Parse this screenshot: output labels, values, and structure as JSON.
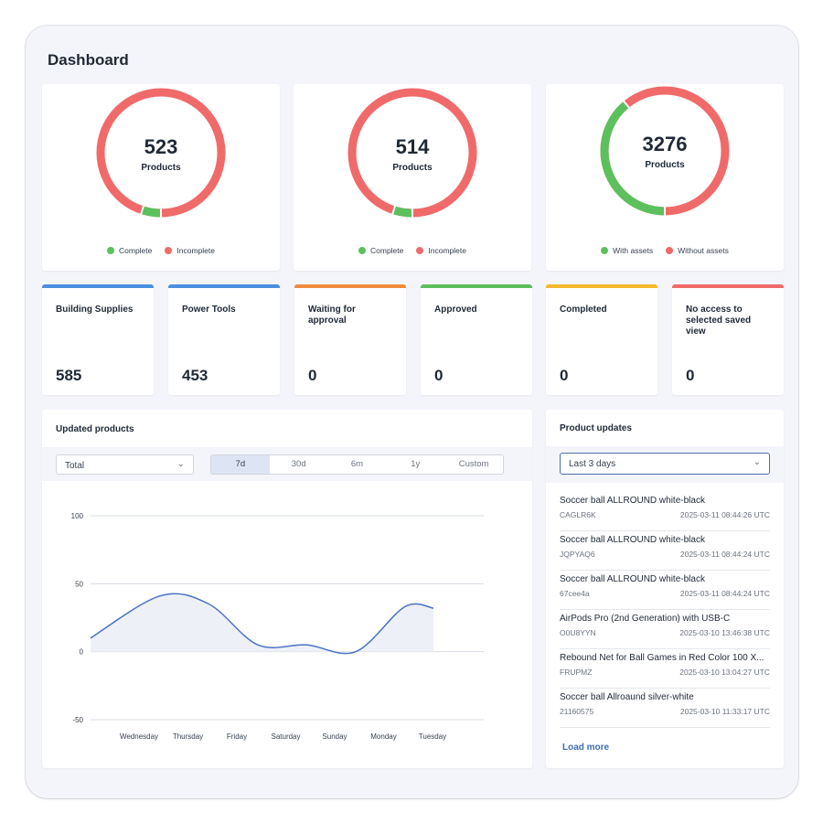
{
  "page": {
    "title": "Dashboard"
  },
  "colors": {
    "green": "#5cc05c",
    "red": "#f06a6a",
    "blue": "#4a90e2",
    "orange": "#f08a3c",
    "yellow": "#f5b82e",
    "line": "#4a72c4"
  },
  "donuts": [
    {
      "value": "523",
      "label": "Products",
      "green_fraction": 0.05,
      "legend": [
        "Complete",
        "Incomplete"
      ]
    },
    {
      "value": "514",
      "label": "Products",
      "green_fraction": 0.05,
      "legend": [
        "Complete",
        "Incomplete"
      ]
    },
    {
      "value": "3276",
      "label": "Products",
      "green_fraction": 0.39,
      "legend": [
        "With assets",
        "Without assets"
      ]
    }
  ],
  "stats": [
    {
      "name": "Building Supplies",
      "value": "585",
      "color": "#4a90e2"
    },
    {
      "name": "Power Tools",
      "value": "453",
      "color": "#4a90e2"
    },
    {
      "name": "Waiting for approval",
      "value": "0",
      "color": "#f08a3c"
    },
    {
      "name": "Approved",
      "value": "0",
      "color": "#5cc05c"
    },
    {
      "name": "Completed",
      "value": "0",
      "color": "#f5b82e"
    },
    {
      "name": "No access to selected saved view",
      "value": "0",
      "color": "#f06a6a"
    }
  ],
  "updated_products": {
    "title": "Updated products",
    "filter": "Total",
    "ranges": [
      "7d",
      "30d",
      "6m",
      "1y",
      "Custom"
    ],
    "active_range": "7d"
  },
  "chart_data": {
    "type": "area",
    "categories": [
      "Wednesday",
      "Thursday",
      "Friday",
      "Saturday",
      "Sunday",
      "Monday",
      "Tuesday"
    ],
    "values": [
      41,
      35,
      5,
      5,
      0,
      33,
      32
    ],
    "start_value": 10,
    "yticks": [
      100,
      50,
      0,
      -50
    ],
    "ylim": [
      -50,
      100
    ],
    "grid": true
  },
  "product_updates": {
    "title": "Product updates",
    "filter": "Last 3 days",
    "items": [
      {
        "title": "Soccer ball ALLROUND white-black",
        "code": "CAGLR6K",
        "date": "2025-03-11 08:44:26 UTC"
      },
      {
        "title": "Soccer ball ALLROUND white-black",
        "code": "JQPYAQ6",
        "date": "2025-03-11 08:44:24 UTC"
      },
      {
        "title": "Soccer ball ALLROUND white-black",
        "code": "67cee4a",
        "date": "2025-03-11 08:44:24 UTC"
      },
      {
        "title": "AirPods Pro (2nd Generation) with USB-C",
        "code": "O0U8YYN",
        "date": "2025-03-10 13:46:38 UTC"
      },
      {
        "title": "Rebound Net for Ball Games in Red Color 100 X...",
        "code": "FRUPMZ",
        "date": "2025-03-10 13:04:27 UTC"
      },
      {
        "title": "Soccer ball Allroaund silver-white",
        "code": "21160575",
        "date": "2025-03-10 11:33:17 UTC"
      }
    ],
    "load_more": "Load more"
  }
}
